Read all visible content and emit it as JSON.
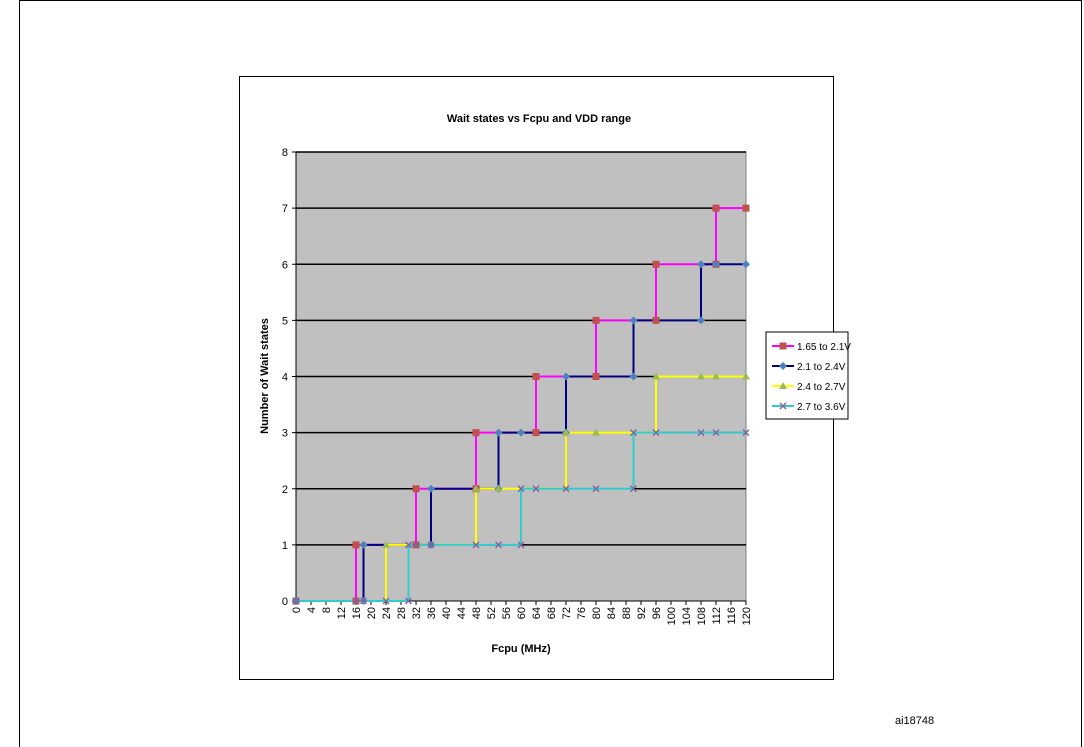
{
  "figure_id": "ai18748",
  "chart_data": {
    "type": "line",
    "title": "Wait states vs Fcpu and VDD range",
    "xlabel": "Fcpu (MHz)",
    "ylabel": "Number of Wait states",
    "xlim": [
      0,
      120
    ],
    "ylim": [
      0,
      8
    ],
    "x_ticks": [
      0,
      4,
      8,
      12,
      16,
      20,
      24,
      28,
      32,
      36,
      40,
      44,
      48,
      52,
      56,
      60,
      64,
      68,
      72,
      76,
      80,
      84,
      88,
      92,
      96,
      100,
      104,
      108,
      112,
      116,
      120
    ],
    "y_ticks": [
      0,
      1,
      2,
      3,
      4,
      5,
      6,
      7,
      8
    ],
    "grid": "horizontal",
    "legend_position": "right",
    "plot_background": "#c0c0c0",
    "series": [
      {
        "name": "1.65 to 2.1V",
        "color": "#ff00ff",
        "marker_color": "#c0504d",
        "marker": "square",
        "step_points": [
          [
            0,
            0
          ],
          [
            16,
            0
          ],
          [
            16,
            1
          ],
          [
            32,
            1
          ],
          [
            32,
            2
          ],
          [
            48,
            2
          ],
          [
            48,
            3
          ],
          [
            64,
            3
          ],
          [
            64,
            4
          ],
          [
            80,
            4
          ],
          [
            80,
            5
          ],
          [
            96,
            5
          ],
          [
            96,
            6
          ],
          [
            112,
            6
          ],
          [
            112,
            7
          ],
          [
            120,
            7
          ]
        ],
        "markers": [
          [
            0,
            0
          ],
          [
            16,
            0
          ],
          [
            16,
            1
          ],
          [
            32,
            1
          ],
          [
            32,
            2
          ],
          [
            48,
            2
          ],
          [
            48,
            3
          ],
          [
            64,
            3
          ],
          [
            64,
            4
          ],
          [
            80,
            4
          ],
          [
            80,
            5
          ],
          [
            96,
            5
          ],
          [
            96,
            6
          ],
          [
            112,
            6
          ],
          [
            112,
            7
          ],
          [
            120,
            7
          ]
        ]
      },
      {
        "name": "2.1 to 2.4V",
        "color": "#000080",
        "marker_color": "#4f81bd",
        "marker": "diamond",
        "step_points": [
          [
            0,
            0
          ],
          [
            18,
            0
          ],
          [
            18,
            1
          ],
          [
            36,
            1
          ],
          [
            36,
            2
          ],
          [
            54,
            2
          ],
          [
            54,
            3
          ],
          [
            72,
            3
          ],
          [
            72,
            4
          ],
          [
            90,
            4
          ],
          [
            90,
            5
          ],
          [
            108,
            5
          ],
          [
            108,
            6
          ],
          [
            120,
            6
          ]
        ],
        "markers": [
          [
            0,
            0
          ],
          [
            18,
            0
          ],
          [
            18,
            1
          ],
          [
            36,
            1
          ],
          [
            36,
            2
          ],
          [
            54,
            2
          ],
          [
            54,
            3
          ],
          [
            60,
            3
          ],
          [
            72,
            3
          ],
          [
            72,
            4
          ],
          [
            90,
            4
          ],
          [
            90,
            5
          ],
          [
            108,
            5
          ],
          [
            108,
            6
          ],
          [
            112,
            6
          ],
          [
            120,
            6
          ]
        ]
      },
      {
        "name": "2.4 to 2.7V",
        "color": "#ffff00",
        "marker_color": "#9bbb59",
        "marker": "triangle",
        "step_points": [
          [
            0,
            0
          ],
          [
            24,
            0
          ],
          [
            24,
            1
          ],
          [
            48,
            1
          ],
          [
            48,
            2
          ],
          [
            72,
            2
          ],
          [
            72,
            3
          ],
          [
            96,
            3
          ],
          [
            96,
            4
          ],
          [
            120,
            4
          ]
        ],
        "markers": [
          [
            24,
            1
          ],
          [
            48,
            2
          ],
          [
            54,
            2
          ],
          [
            72,
            3
          ],
          [
            80,
            3
          ],
          [
            96,
            4
          ],
          [
            108,
            4
          ],
          [
            112,
            4
          ],
          [
            120,
            4
          ]
        ]
      },
      {
        "name": "2.7 to 3.6V",
        "color": "#33cccc",
        "marker_color": "#8064a2",
        "marker": "x",
        "step_points": [
          [
            0,
            0
          ],
          [
            30,
            0
          ],
          [
            30,
            1
          ],
          [
            60,
            1
          ],
          [
            60,
            2
          ],
          [
            90,
            2
          ],
          [
            90,
            3
          ],
          [
            120,
            3
          ]
        ],
        "markers": [
          [
            0,
            0
          ],
          [
            16,
            0
          ],
          [
            18,
            0
          ],
          [
            24,
            0
          ],
          [
            30,
            0
          ],
          [
            30,
            1
          ],
          [
            32,
            1
          ],
          [
            36,
            1
          ],
          [
            48,
            1
          ],
          [
            54,
            1
          ],
          [
            60,
            1
          ],
          [
            60,
            2
          ],
          [
            64,
            2
          ],
          [
            72,
            2
          ],
          [
            80,
            2
          ],
          [
            90,
            2
          ],
          [
            90,
            3
          ],
          [
            96,
            3
          ],
          [
            108,
            3
          ],
          [
            112,
            3
          ],
          [
            120,
            3
          ]
        ]
      }
    ]
  }
}
